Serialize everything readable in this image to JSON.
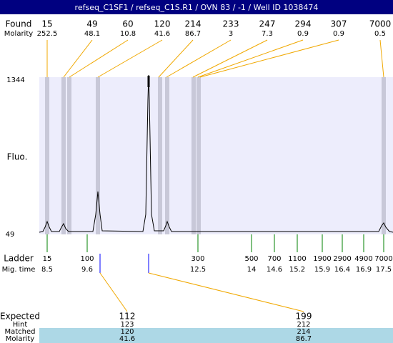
{
  "header": {
    "title": "refseq_C1SF1 / refseq_C1S.R1 / OVN 83 / -1 / Well ID 1038474"
  },
  "found": {
    "label": "Found",
    "sublabel": "Molarity",
    "sizes": [
      "15",
      "49",
      "60",
      "120",
      "214",
      "233",
      "247",
      "294",
      "307",
      "7000"
    ],
    "molarity": [
      "252.5",
      "48.1",
      "10.8",
      "41.6",
      "86.7",
      "3",
      "7.3",
      "0.9",
      "0.9",
      "0.5"
    ]
  },
  "plot": {
    "axis_label": "Fluo.",
    "top_label": "1344",
    "bottom_label": "49"
  },
  "ladder": {
    "label": "Ladder",
    "sublabel": "Mig. time",
    "sizes": [
      "15",
      "100",
      "300",
      "500",
      "700",
      "1100",
      "1900",
      "2900",
      "4900",
      "7000"
    ],
    "mig_times": [
      "8.5",
      "9.6",
      "12.5",
      "14",
      "14.6",
      "15.2",
      "15.9",
      "16.4",
      "16.9",
      "17.5"
    ]
  },
  "table": {
    "row_labels": [
      "Expected",
      "Hint",
      "Matched",
      "Molarity"
    ],
    "columns": [
      [
        "112",
        "123",
        "120",
        "41.6"
      ],
      [
        "199",
        "212",
        "214",
        "86.7"
      ]
    ]
  }
}
